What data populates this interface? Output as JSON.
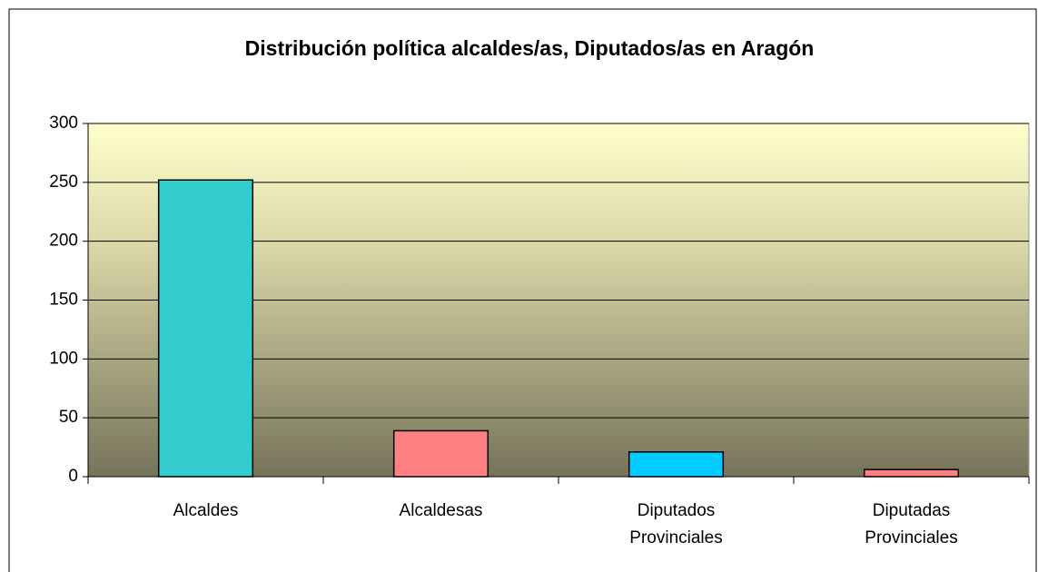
{
  "chart_data": {
    "type": "bar",
    "title": "Distribución política alcaldes/as, Diputados/as en Aragón",
    "categories": [
      "Alcaldes",
      "Alcaldesas",
      "Diputados Provinciales",
      "Diputadas Provinciales"
    ],
    "values": [
      252,
      39,
      21,
      6
    ],
    "colors": [
      "#33cccc",
      "#ff8080",
      "#00ccff",
      "#ff8080"
    ],
    "ylim": [
      0,
      300
    ],
    "yticks": [
      0,
      50,
      100,
      150,
      200,
      250,
      300
    ],
    "grid": true
  }
}
